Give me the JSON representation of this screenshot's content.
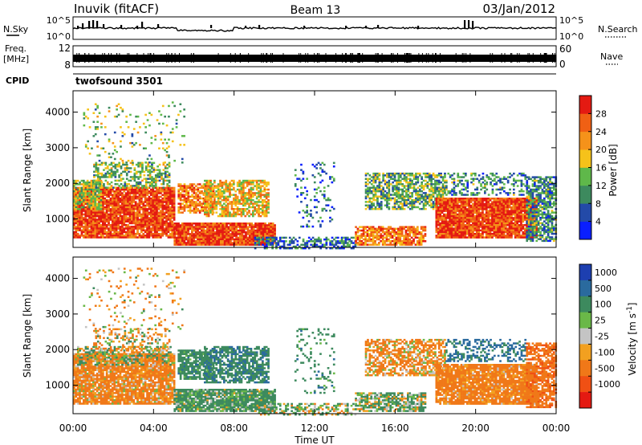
{
  "header": {
    "station": "Inuvik (fitACF)",
    "beam": "Beam 13",
    "date": "03/Jan/2012"
  },
  "sky_panel": {
    "left_label": "N.Sky",
    "left_ticks": [
      "10^5",
      "10^0"
    ],
    "right_ticks": [
      "10^5",
      "10^0"
    ],
    "right_label": "N.Search"
  },
  "freq_panel": {
    "left_label_line1": "Freq.",
    "left_label_line2": "[MHz]",
    "left_ticks": [
      "12",
      "8"
    ],
    "right_ticks": [
      "60",
      "0"
    ],
    "right_label": "Nave"
  },
  "cpid_panel": {
    "label": "CPID",
    "value": "twofsound 3501"
  },
  "axes": {
    "ylabel": "Slant Range [km]",
    "xlabel": "Time UT",
    "yticks": [
      "1000",
      "2000",
      "3000",
      "4000"
    ],
    "xticks": [
      "00:00",
      "04:00",
      "08:00",
      "12:00",
      "16:00",
      "20:00",
      "00:00"
    ]
  },
  "colorbars": {
    "power": {
      "label": "Power [dB]",
      "ticks": [
        "4",
        "8",
        "12",
        "16",
        "20",
        "24",
        "28"
      ],
      "colors": [
        "#0a1fff",
        "#234aa8",
        "#3d8a5e",
        "#5fb84a",
        "#f6c21a",
        "#f5921a",
        "#f06014",
        "#e41a12"
      ]
    },
    "velocity": {
      "label": "Velocity [m s^-1]",
      "ticks": [
        "1000",
        "500",
        "100",
        "25",
        "-25",
        "-100",
        "-500",
        "-1000"
      ],
      "colors": [
        "#1d3fb0",
        "#2a6a9e",
        "#3d8a5e",
        "#6ab848",
        "#c4c4c4",
        "#f2a020",
        "#f07818",
        "#f05014",
        "#e41a12"
      ]
    }
  },
  "chart_data": [
    {
      "type": "heatmap",
      "panel": "power",
      "x_range_hours_ut": [
        0,
        24
      ],
      "y_range_km": [
        200,
        4600
      ],
      "colorbar_label": "Power [dB]",
      "value_range_db": [
        0,
        32
      ],
      "blobs": [
        {
          "t0": 0.0,
          "t1": 5.0,
          "r0": 500,
          "r1": 1900,
          "level": 28,
          "density": 0.92
        },
        {
          "t0": 0.0,
          "t1": 1.4,
          "r0": 1300,
          "r1": 2100,
          "level": 16,
          "density": 0.7
        },
        {
          "t0": 1.0,
          "t1": 4.8,
          "r0": 1900,
          "r1": 2600,
          "level": 14,
          "density": 0.5
        },
        {
          "t0": 5.0,
          "t1": 10.0,
          "r0": 300,
          "r1": 900,
          "level": 28,
          "density": 0.95
        },
        {
          "t0": 5.2,
          "t1": 7.0,
          "r0": 1200,
          "r1": 2000,
          "level": 24,
          "density": 0.75
        },
        {
          "t0": 6.5,
          "t1": 9.7,
          "r0": 1100,
          "r1": 2100,
          "level": 20,
          "density": 0.7
        },
        {
          "t0": 9.0,
          "t1": 14.0,
          "r0": 200,
          "r1": 500,
          "level": 8,
          "density": 0.55
        },
        {
          "t0": 11.0,
          "t1": 13.0,
          "r0": 800,
          "r1": 2600,
          "level": 8,
          "density": 0.15
        },
        {
          "t0": 14.0,
          "t1": 17.5,
          "r0": 300,
          "r1": 800,
          "level": 24,
          "density": 0.8
        },
        {
          "t0": 14.5,
          "t1": 18.5,
          "r0": 1300,
          "r1": 2300,
          "level": 12,
          "density": 0.65
        },
        {
          "t0": 18.0,
          "t1": 23.0,
          "r0": 500,
          "r1": 1600,
          "level": 28,
          "density": 0.95
        },
        {
          "t0": 18.5,
          "t1": 22.5,
          "r0": 1700,
          "r1": 2300,
          "level": 10,
          "density": 0.4
        },
        {
          "t0": 22.5,
          "t1": 24.0,
          "r0": 400,
          "r1": 2200,
          "level": 10,
          "density": 0.7
        },
        {
          "t0": 0.5,
          "t1": 5.5,
          "r0": 2600,
          "r1": 4300,
          "level": 14,
          "density": 0.08
        }
      ]
    },
    {
      "type": "heatmap",
      "panel": "velocity",
      "x_range_hours_ut": [
        0,
        24
      ],
      "y_range_km": [
        200,
        4600
      ],
      "colorbar_label": "Velocity [m s^-1]",
      "value_range_ms": [
        -1000,
        1000
      ],
      "blobs": [
        {
          "t0": 0.0,
          "t1": 5.0,
          "r0": 500,
          "r1": 1900,
          "level": -200,
          "density": 0.9
        },
        {
          "t0": 0.2,
          "t1": 4.8,
          "r0": 1600,
          "r1": 2100,
          "level": 0,
          "density": 0.55
        },
        {
          "t0": 1.0,
          "t1": 4.8,
          "r0": 2000,
          "r1": 2600,
          "level": -80,
          "density": 0.35
        },
        {
          "t0": 5.0,
          "t1": 10.0,
          "r0": 300,
          "r1": 900,
          "level": 200,
          "density": 0.9
        },
        {
          "t0": 5.2,
          "t1": 7.0,
          "r0": 1200,
          "r1": 2000,
          "level": 300,
          "density": 0.75
        },
        {
          "t0": 6.5,
          "t1": 9.7,
          "r0": 1100,
          "r1": 2100,
          "level": 400,
          "density": 0.7
        },
        {
          "t0": 9.0,
          "t1": 14.0,
          "r0": 200,
          "r1": 500,
          "level": 100,
          "density": 0.5
        },
        {
          "t0": 11.0,
          "t1": 13.0,
          "r0": 800,
          "r1": 2600,
          "level": 300,
          "density": 0.15
        },
        {
          "t0": 14.0,
          "t1": 17.5,
          "r0": 300,
          "r1": 800,
          "level": 100,
          "density": 0.75
        },
        {
          "t0": 14.5,
          "t1": 18.5,
          "r0": 1300,
          "r1": 2300,
          "level": -150,
          "density": 0.65
        },
        {
          "t0": 18.0,
          "t1": 23.0,
          "r0": 500,
          "r1": 1600,
          "level": -250,
          "density": 0.9
        },
        {
          "t0": 18.5,
          "t1": 22.5,
          "r0": 1700,
          "r1": 2300,
          "level": 600,
          "density": 0.4
        },
        {
          "t0": 22.5,
          "t1": 24.0,
          "r0": 400,
          "r1": 2200,
          "level": -400,
          "density": 0.7
        },
        {
          "t0": 0.5,
          "t1": 5.5,
          "r0": 2600,
          "r1": 4300,
          "level": -100,
          "density": 0.08
        }
      ]
    }
  ]
}
